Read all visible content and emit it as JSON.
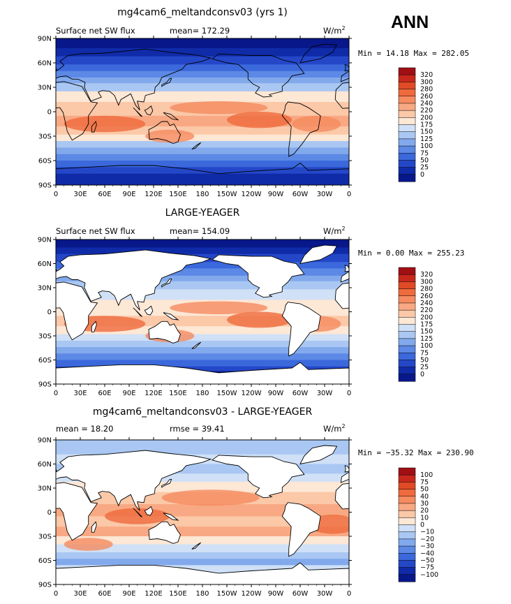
{
  "figure": {
    "season": "ANN",
    "units_label": "W/m",
    "units_sup": "2"
  },
  "chart_data": [
    {
      "type": "heatmap",
      "title": "mg4cam6_meltandconsv03 (yrs 1)",
      "left_label": "Surface net SW flux",
      "stat_label": "mean= 172.29",
      "minmax": "Min =  14.18 Max = 282.05",
      "min": 14.18,
      "max": 282.05,
      "mean": 172.29,
      "xlim": [
        0,
        360
      ],
      "ylim": [
        -90,
        90
      ],
      "x_ticks": [
        "0",
        "30E",
        "60E",
        "90E",
        "120E",
        "150E",
        "180",
        "150W",
        "120W",
        "90W",
        "60W",
        "30W",
        "0"
      ],
      "y_ticks": [
        "90N",
        "60N",
        "30N",
        "0",
        "30S",
        "60S",
        "90S"
      ],
      "colorbar_levels": [
        "320",
        "300",
        "280",
        "260",
        "240",
        "220",
        "200",
        "175",
        "150",
        "125",
        "100",
        "75",
        "50",
        "25",
        "0"
      ],
      "colors": [
        "#a00f14",
        "#c8281c",
        "#e04a25",
        "#ef6a3c",
        "#f58b5f",
        "#f8a983",
        "#fbc8a8",
        "#fde7d5",
        "#cfe0f7",
        "#a9c7f2",
        "#82a9ec",
        "#5c89e5",
        "#3b69dc",
        "#2447c8",
        "#0f2ba8",
        "#08178a"
      ],
      "land_masked": false
    },
    {
      "type": "heatmap",
      "title": "LARGE-YEAGER",
      "left_label": "Surface net SW flux",
      "stat_label": "mean= 154.09",
      "minmax": "Min =   0.00 Max = 255.23",
      "min": 0.0,
      "max": 255.23,
      "mean": 154.09,
      "xlim": [
        0,
        360
      ],
      "ylim": [
        -90,
        90
      ],
      "x_ticks": [
        "0",
        "30E",
        "60E",
        "90E",
        "120E",
        "150E",
        "180",
        "150W",
        "120W",
        "90W",
        "60W",
        "30W",
        "0"
      ],
      "y_ticks": [
        "90N",
        "60N",
        "30N",
        "0",
        "30S",
        "60S",
        "90S"
      ],
      "colorbar_levels": [
        "320",
        "300",
        "280",
        "260",
        "240",
        "220",
        "200",
        "175",
        "150",
        "125",
        "100",
        "75",
        "50",
        "25",
        "0"
      ],
      "colors": [
        "#a00f14",
        "#c8281c",
        "#e04a25",
        "#ef6a3c",
        "#f58b5f",
        "#f8a983",
        "#fbc8a8",
        "#fde7d5",
        "#cfe0f7",
        "#a9c7f2",
        "#82a9ec",
        "#5c89e5",
        "#3b69dc",
        "#2447c8",
        "#0f2ba8",
        "#08178a"
      ],
      "land_masked": true
    },
    {
      "type": "heatmap",
      "title": "mg4cam6_meltandconsv03 - LARGE-YEAGER",
      "left_label": "mean =  18.20",
      "stat_label": "rmse =  39.41",
      "minmax": "Min = −35.32 Max = 230.90",
      "min": -35.32,
      "max": 230.9,
      "mean": 18.2,
      "rmse": 39.41,
      "xlim": [
        0,
        360
      ],
      "ylim": [
        -90,
        90
      ],
      "x_ticks": [
        "0",
        "30E",
        "60E",
        "90E",
        "120E",
        "150E",
        "180",
        "150W",
        "120W",
        "90W",
        "60W",
        "30W",
        "0"
      ],
      "y_ticks": [
        "90N",
        "60N",
        "30N",
        "0",
        "30S",
        "60S",
        "90S"
      ],
      "colorbar_levels": [
        "100",
        "75",
        "50",
        "40",
        "30",
        "20",
        "10",
        "0",
        "−10",
        "−20",
        "−30",
        "−40",
        "−50",
        "−75",
        "−100"
      ],
      "colors": [
        "#a00f14",
        "#c8281c",
        "#e04a25",
        "#ef6a3c",
        "#f58b5f",
        "#f8a983",
        "#fbc8a8",
        "#fde7d5",
        "#cfe0f7",
        "#a9c7f2",
        "#82a9ec",
        "#5c89e5",
        "#3b69dc",
        "#2447c8",
        "#0f2ba8",
        "#08178a"
      ],
      "land_masked": true
    }
  ]
}
